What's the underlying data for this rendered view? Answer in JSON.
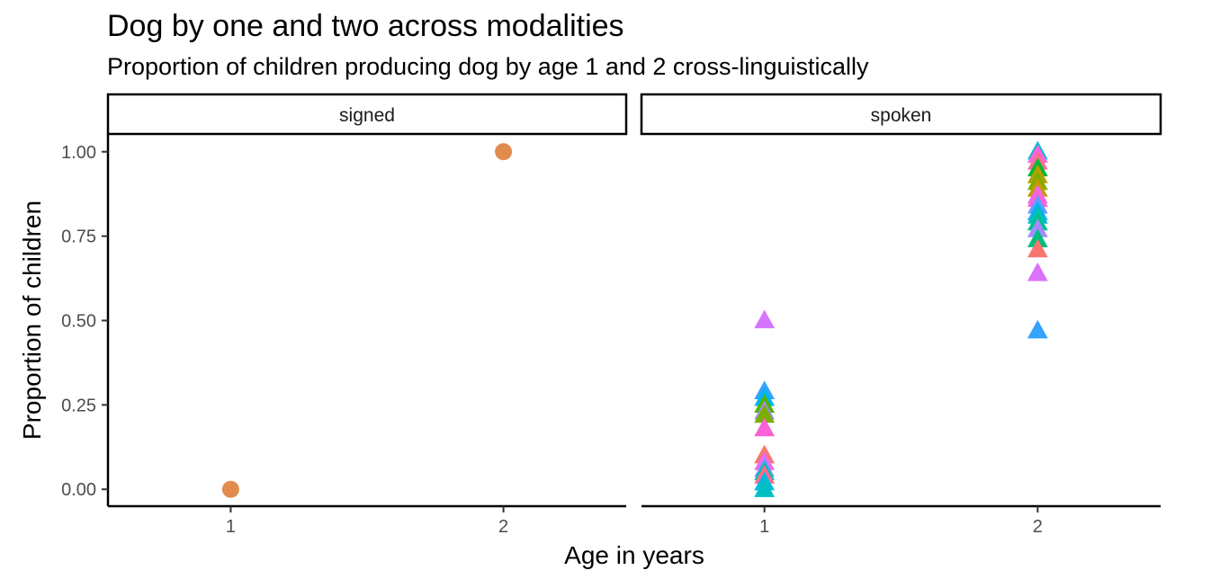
{
  "chart_data": {
    "type": "scatter",
    "title": "Dog by one and two across modalities",
    "subtitle": "Proportion of children producing dog by age 1 and 2 cross-linguistically",
    "xlabel": "Age in years",
    "ylabel": "Proportion of children",
    "xlim": [
      0.55,
      2.45
    ],
    "ylim": [
      -0.05,
      1.05
    ],
    "x_ticks": [
      "1",
      "2"
    ],
    "y_ticks": [
      "0.00",
      "0.25",
      "0.50",
      "0.75",
      "1.00"
    ],
    "grid": false,
    "legend": "none",
    "facets": [
      {
        "label": "signed",
        "marker": "circle",
        "points": [
          {
            "x": 1,
            "y": 0.0,
            "color": "#E18C4E"
          },
          {
            "x": 2,
            "y": 1.0,
            "color": "#E18C4E"
          }
        ]
      },
      {
        "label": "spoken",
        "marker": "triangle",
        "points": [
          {
            "x": 1,
            "y": 0.5,
            "color": "#D575FE"
          },
          {
            "x": 1,
            "y": 0.29,
            "color": "#35A2FF"
          },
          {
            "x": 1,
            "y": 0.27,
            "color": "#00B4F0"
          },
          {
            "x": 1,
            "y": 0.25,
            "color": "#53B400"
          },
          {
            "x": 1,
            "y": 0.23,
            "color": "#A58AFF"
          },
          {
            "x": 1,
            "y": 0.22,
            "color": "#7CAE00"
          },
          {
            "x": 1,
            "y": 0.18,
            "color": "#FB61D7"
          },
          {
            "x": 1,
            "y": 0.1,
            "color": "#F8766D"
          },
          {
            "x": 1,
            "y": 0.08,
            "color": "#E76BF3"
          },
          {
            "x": 1,
            "y": 0.06,
            "color": "#619CFF"
          },
          {
            "x": 1,
            "y": 0.05,
            "color": "#00C1A3"
          },
          {
            "x": 1,
            "y": 0.04,
            "color": "#FF6C90"
          },
          {
            "x": 1,
            "y": 0.02,
            "color": "#00BAE0"
          },
          {
            "x": 1,
            "y": 0.0,
            "color": "#00BFC4"
          },
          {
            "x": 2,
            "y": 1.0,
            "color": "#00BFC4"
          },
          {
            "x": 2,
            "y": 0.99,
            "color": "#F564E3"
          },
          {
            "x": 2,
            "y": 0.97,
            "color": "#FF6C90"
          },
          {
            "x": 2,
            "y": 0.95,
            "color": "#00BA38"
          },
          {
            "x": 2,
            "y": 0.93,
            "color": "#B79F00"
          },
          {
            "x": 2,
            "y": 0.91,
            "color": "#7CAE00"
          },
          {
            "x": 2,
            "y": 0.89,
            "color": "#C99800"
          },
          {
            "x": 2,
            "y": 0.87,
            "color": "#E76BF3"
          },
          {
            "x": 2,
            "y": 0.86,
            "color": "#FB61D7"
          },
          {
            "x": 2,
            "y": 0.84,
            "color": "#619CFF"
          },
          {
            "x": 2,
            "y": 0.82,
            "color": "#00B0F6"
          },
          {
            "x": 2,
            "y": 0.81,
            "color": "#00BFC4"
          },
          {
            "x": 2,
            "y": 0.79,
            "color": "#00C08B"
          },
          {
            "x": 2,
            "y": 0.77,
            "color": "#A58AFF"
          },
          {
            "x": 2,
            "y": 0.74,
            "color": "#00BF7D"
          },
          {
            "x": 2,
            "y": 0.71,
            "color": "#F8766D"
          },
          {
            "x": 2,
            "y": 0.64,
            "color": "#DC71FA"
          },
          {
            "x": 2,
            "y": 0.47,
            "color": "#35A2FF"
          }
        ]
      }
    ]
  }
}
